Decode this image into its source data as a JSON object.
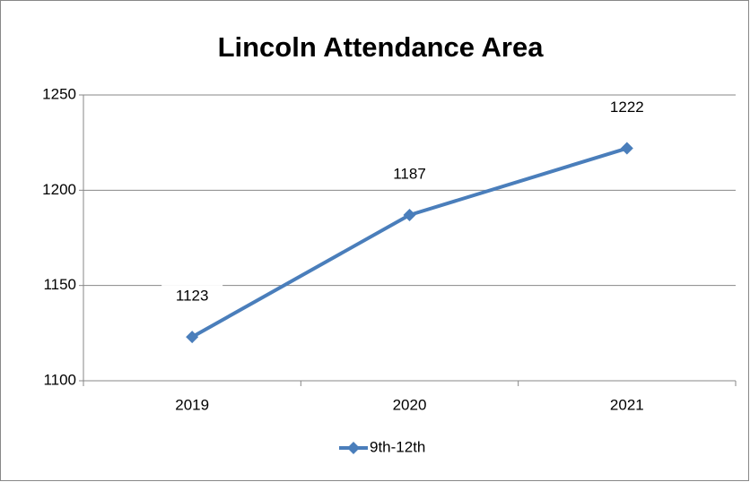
{
  "chart_data": {
    "type": "line",
    "title": "Lincoln Attendance Area",
    "categories": [
      "2019",
      "2020",
      "2021"
    ],
    "series": [
      {
        "name": "9th-12th",
        "color": "#4a7ebb",
        "values": [
          1123,
          1187,
          1222
        ]
      }
    ],
    "ylim": [
      1100,
      1250
    ],
    "yticks": [
      1100,
      1150,
      1200,
      1250
    ],
    "grid": true,
    "legend": "bottom"
  }
}
